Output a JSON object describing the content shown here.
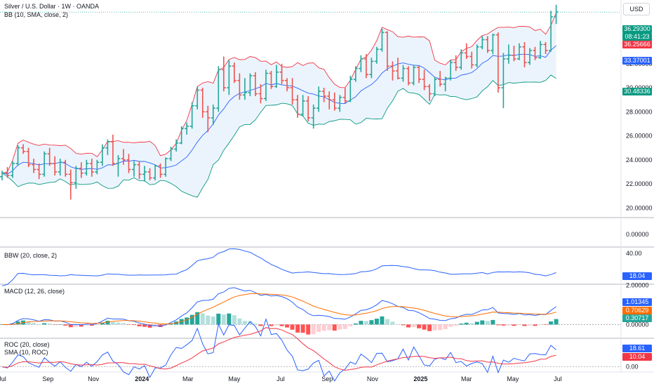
{
  "header": {
    "title": "Silver / U.S. Dollar · 1W · OANDA",
    "bb_label": "BB (10, SMA, close, 2)",
    "currency": "USD"
  },
  "panels": {
    "bbw_label": "BBW (20, close, 2)",
    "macd_label": "MACD (12, 26, close)",
    "roc_label": "ROC (20, close)",
    "roc_sma_label": "SMA (10, ROC)"
  },
  "badges": {
    "price": "36.29300",
    "countdown": "08:41:23",
    "bb_upper": "36.25666",
    "bb_basis": "33.37001",
    "bb_lower": "30.48336",
    "bbw": "18.04",
    "macd": "1.01345",
    "signal": "0.70629",
    "hist": "0.30717",
    "roc": "18.61",
    "roc_sma": "10.04"
  },
  "colors": {
    "up": "#26a69a",
    "down": "#ef5350",
    "bb_upper": "#f23645",
    "bb_basis": "#2962ff",
    "bb_lower": "#089981",
    "bb_fill": "#e3f0fb",
    "bbw": "#2962ff",
    "macd": "#2962ff",
    "signal": "#ff6d00",
    "roc": "#2962ff",
    "roc_sma": "#f23645",
    "hist_up_strong": "#26a69a",
    "hist_up_weak": "#b2dfdb",
    "hist_down_strong": "#ff5252",
    "hist_down_weak": "#ffcdd2"
  },
  "chart_data": {
    "type": "candlestick",
    "symbol": "Silver / U.S. Dollar",
    "interval": "1W",
    "x_ticks": [
      "Jul",
      "Sep",
      "Nov",
      "2024",
      "Mar",
      "May",
      "Jul",
      "Sep",
      "Nov",
      "2025",
      "Mar",
      "May",
      "Jul"
    ],
    "price_axis": {
      "ticks": [
        "20.00000",
        "22.00000",
        "24.00000",
        "26.00000",
        "28.00000",
        "30.00000",
        "32.00000",
        "34.00000"
      ],
      "range": [
        19.2,
        37.3
      ]
    },
    "empty_panel_axis": {
      "ticks": [
        "0.00000"
      ]
    },
    "bbw_axis": {
      "ticks": [
        "40.00"
      ],
      "range": [
        2,
        48
      ]
    },
    "macd_axis": {
      "ticks": [
        "2.00000",
        "0.00000"
      ],
      "range": [
        -0.7,
        2.05
      ]
    },
    "roc_axis": {
      "ticks": [
        "0.00"
      ],
      "range": [
        -4,
        22
      ]
    },
    "candles": [
      [
        22.6,
        23.1,
        22.3,
        22.9
      ],
      [
        22.9,
        23.4,
        22.5,
        22.7
      ],
      [
        22.7,
        23.9,
        22.5,
        23.7
      ],
      [
        23.7,
        25.2,
        23.5,
        25.0
      ],
      [
        25.0,
        25.3,
        24.5,
        24.7
      ],
      [
        24.7,
        25.0,
        23.4,
        23.6
      ],
      [
        23.6,
        24.1,
        22.9,
        23.2
      ],
      [
        23.2,
        23.7,
        22.4,
        22.8
      ],
      [
        22.8,
        24.7,
        22.6,
        24.5
      ],
      [
        24.5,
        25.0,
        23.5,
        23.7
      ],
      [
        23.7,
        24.3,
        22.7,
        23.0
      ],
      [
        23.0,
        24.1,
        22.7,
        23.8
      ],
      [
        23.8,
        24.0,
        22.6,
        22.8
      ],
      [
        22.8,
        23.2,
        20.7,
        22.1
      ],
      [
        22.1,
        23.5,
        21.6,
        23.3
      ],
      [
        23.3,
        23.8,
        22.5,
        22.9
      ],
      [
        22.9,
        24.0,
        22.7,
        23.7
      ],
      [
        23.7,
        24.1,
        22.6,
        23.0
      ],
      [
        23.0,
        24.0,
        22.8,
        23.8
      ],
      [
        23.8,
        25.3,
        23.5,
        25.0
      ],
      [
        25.0,
        25.7,
        24.4,
        25.5
      ],
      [
        25.5,
        26.1,
        23.5,
        23.7
      ],
      [
        23.7,
        24.4,
        22.6,
        24.1
      ],
      [
        24.1,
        24.9,
        23.6,
        24.0
      ],
      [
        24.0,
        24.5,
        22.9,
        23.2
      ],
      [
        23.2,
        23.9,
        22.6,
        23.6
      ],
      [
        23.6,
        23.9,
        22.4,
        22.8
      ],
      [
        22.8,
        23.5,
        22.2,
        23.0
      ],
      [
        23.0,
        23.3,
        22.3,
        22.5
      ],
      [
        22.5,
        23.6,
        22.3,
        23.5
      ],
      [
        23.5,
        23.7,
        22.5,
        22.8
      ],
      [
        22.8,
        24.2,
        22.6,
        24.1
      ],
      [
        24.1,
        25.1,
        23.9,
        24.9
      ],
      [
        24.9,
        25.7,
        24.7,
        25.4
      ],
      [
        25.4,
        26.8,
        25.3,
        26.6
      ],
      [
        26.6,
        27.1,
        26.1,
        26.8
      ],
      [
        26.8,
        28.8,
        26.6,
        28.5
      ],
      [
        28.5,
        30.1,
        28.2,
        29.8
      ],
      [
        29.8,
        30.0,
        27.5,
        28.0
      ],
      [
        28.0,
        28.5,
        26.3,
        27.5
      ],
      [
        27.5,
        28.6,
        26.9,
        28.3
      ],
      [
        28.3,
        31.8,
        28.0,
        31.5
      ],
      [
        31.5,
        32.6,
        29.7,
        30.0
      ],
      [
        30.0,
        32.3,
        29.4,
        31.8
      ],
      [
        31.8,
        32.1,
        30.4,
        30.6
      ],
      [
        30.6,
        31.2,
        29.0,
        29.4
      ],
      [
        29.4,
        30.8,
        29.0,
        29.6
      ],
      [
        29.6,
        31.2,
        29.3,
        31.0
      ],
      [
        31.0,
        31.3,
        29.3,
        29.5
      ],
      [
        29.5,
        30.3,
        28.7,
        29.1
      ],
      [
        29.1,
        31.5,
        28.9,
        31.2
      ],
      [
        31.2,
        31.4,
        29.9,
        30.1
      ],
      [
        30.1,
        31.9,
        30.0,
        31.3
      ],
      [
        31.3,
        32.0,
        30.3,
        30.6
      ],
      [
        30.6,
        30.8,
        29.7,
        30.0
      ],
      [
        30.0,
        30.8,
        28.6,
        29.0
      ],
      [
        29.0,
        29.4,
        27.5,
        27.8
      ],
      [
        27.8,
        29.4,
        27.6,
        28.9
      ],
      [
        28.9,
        29.3,
        27.2,
        27.5
      ],
      [
        27.5,
        28.6,
        26.6,
        28.3
      ],
      [
        28.3,
        30.1,
        28.0,
        29.7
      ],
      [
        29.7,
        30.0,
        28.8,
        29.3
      ],
      [
        29.3,
        29.7,
        28.2,
        29.0
      ],
      [
        29.0,
        29.6,
        28.1,
        28.3
      ],
      [
        28.3,
        29.4,
        28.0,
        29.2
      ],
      [
        29.2,
        30.0,
        28.7,
        28.9
      ],
      [
        28.9,
        31.0,
        28.8,
        30.7
      ],
      [
        30.7,
        31.8,
        30.5,
        31.6
      ],
      [
        31.6,
        32.7,
        31.3,
        32.4
      ],
      [
        32.4,
        32.8,
        30.8,
        31.1
      ],
      [
        31.1,
        32.5,
        30.8,
        32.2
      ],
      [
        32.2,
        33.4,
        32.0,
        33.2
      ],
      [
        33.2,
        34.9,
        33.0,
        34.6
      ],
      [
        34.6,
        34.7,
        31.4,
        31.8
      ],
      [
        31.8,
        32.2,
        30.6,
        31.4
      ],
      [
        31.4,
        32.5,
        30.7,
        30.8
      ],
      [
        30.8,
        31.9,
        30.5,
        31.6
      ],
      [
        31.6,
        31.8,
        30.2,
        30.4
      ],
      [
        30.4,
        31.9,
        30.2,
        31.7
      ],
      [
        31.7,
        31.8,
        30.4,
        30.7
      ],
      [
        30.7,
        31.5,
        29.8,
        30.1
      ],
      [
        30.1,
        30.3,
        28.9,
        29.5
      ],
      [
        29.5,
        30.9,
        29.3,
        30.7
      ],
      [
        30.7,
        31.4,
        30.1,
        30.3
      ],
      [
        30.3,
        30.9,
        29.7,
        30.8
      ],
      [
        30.8,
        32.3,
        30.6,
        32.1
      ],
      [
        32.1,
        32.7,
        31.4,
        31.7
      ],
      [
        31.7,
        33.2,
        31.5,
        32.9
      ],
      [
        32.9,
        33.7,
        32.4,
        32.6
      ],
      [
        32.6,
        33.0,
        31.6,
        31.9
      ],
      [
        31.9,
        33.6,
        31.7,
        33.4
      ],
      [
        33.4,
        34.3,
        33.2,
        34.0
      ],
      [
        34.0,
        34.3,
        32.9,
        33.1
      ],
      [
        33.1,
        34.5,
        32.8,
        34.4
      ],
      [
        34.4,
        34.6,
        29.6,
        30.0
      ],
      [
        30.0,
        32.9,
        28.3,
        32.4
      ],
      [
        32.4,
        33.6,
        32.0,
        32.7
      ],
      [
        32.7,
        33.5,
        32.2,
        32.4
      ],
      [
        32.4,
        33.7,
        32.3,
        33.4
      ],
      [
        33.4,
        33.8,
        31.7,
        32.1
      ],
      [
        32.1,
        33.3,
        31.9,
        33.1
      ],
      [
        33.1,
        33.4,
        32.3,
        32.5
      ],
      [
        32.5,
        33.9,
        32.4,
        33.6
      ],
      [
        33.6,
        33.8,
        32.8,
        33.1
      ],
      [
        33.1,
        36.4,
        33.0,
        35.9
      ],
      [
        35.9,
        36.9,
        35.3,
        36.3
      ]
    ],
    "last_price": 36.293
  }
}
